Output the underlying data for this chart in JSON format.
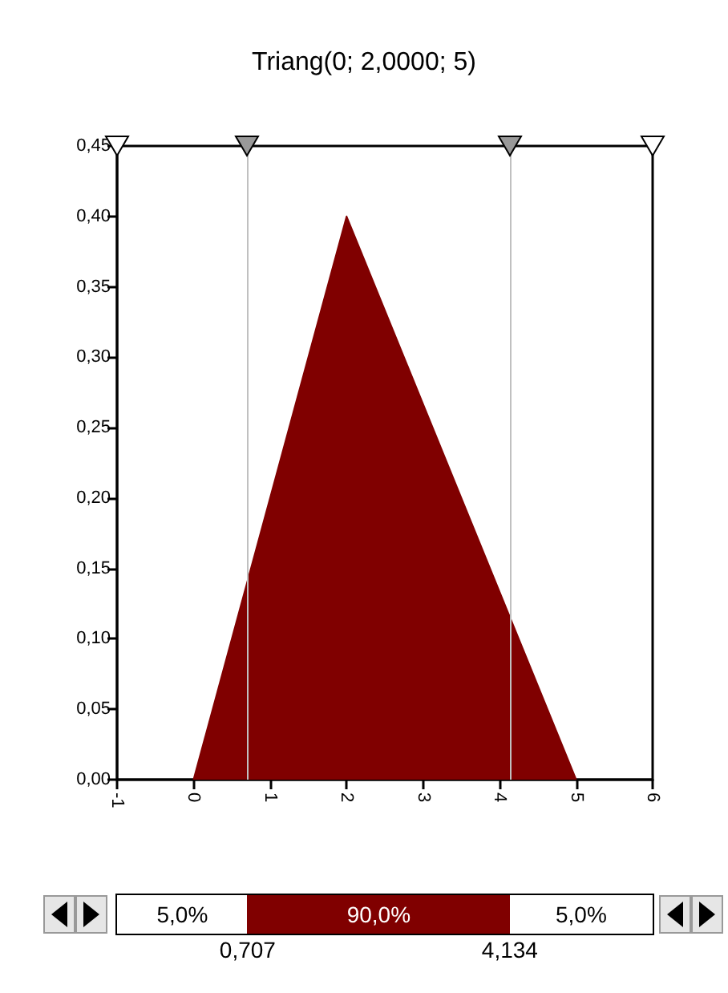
{
  "chart_data": {
    "type": "area",
    "title": "Triang(0; 2,0000; 5)",
    "x": [
      0,
      2,
      5
    ],
    "series": [
      {
        "color": "#800000",
        "values": [
          0,
          0.4,
          0
        ]
      }
    ],
    "xlim": [
      -1,
      6
    ],
    "xticks": [
      -1,
      0,
      1,
      2,
      3,
      4,
      5,
      6
    ],
    "ylim": [
      0,
      0.45
    ],
    "yticks": [
      {
        "value": 0,
        "label": "0,00"
      },
      {
        "value": 0.05,
        "label": "0,05"
      },
      {
        "value": 0.1,
        "label": "0,10"
      },
      {
        "value": 0.15,
        "label": "0,15"
      },
      {
        "value": 0.2,
        "label": "0,20"
      },
      {
        "value": 0.25,
        "label": "0,25"
      },
      {
        "value": 0.3,
        "label": "0,30"
      },
      {
        "value": 0.35,
        "label": "0,35"
      },
      {
        "value": 0.4,
        "label": "0,40"
      },
      {
        "value": 0.45,
        "label": "0,45"
      }
    ],
    "ref_lines": [
      {
        "axis": "x",
        "value": 0.707,
        "color": "#c0c0c0"
      },
      {
        "axis": "x",
        "value": 4.134,
        "color": "#c0c0c0"
      }
    ],
    "annotations": [
      "5,0%",
      "90,0%",
      "5,0%",
      "0,707",
      "4,134"
    ],
    "grid": false,
    "marker": "none"
  }
}
